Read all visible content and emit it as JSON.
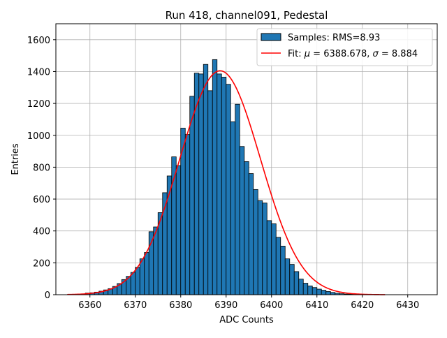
{
  "chart_data": {
    "type": "bar",
    "title": "Run 418, channel091, Pedestal",
    "xlabel": "ADC Counts",
    "ylabel": "Entries",
    "xlim": [
      6352.5,
      6436.5
    ],
    "ylim": [
      0,
      1700
    ],
    "xticks": [
      6360,
      6370,
      6380,
      6390,
      6400,
      6410,
      6420,
      6430
    ],
    "yticks": [
      0,
      200,
      400,
      600,
      800,
      1000,
      1200,
      1400,
      1600
    ],
    "grid": true,
    "legend_position": "top-right",
    "colors": {
      "bars": "#1f77b4",
      "bar_edge": "#000000",
      "fit": "#ff0000",
      "grid": "#b0b0b0"
    },
    "histogram": {
      "name": "Samples: RMS=8.93",
      "bin_start": 6357,
      "bin_width": 1,
      "counts": [
        2,
        5,
        10,
        12,
        16,
        22,
        30,
        38,
        52,
        70,
        95,
        115,
        140,
        172,
        225,
        265,
        395,
        425,
        515,
        640,
        745,
        865,
        810,
        1045,
        1005,
        1245,
        1390,
        1385,
        1445,
        1280,
        1475,
        1385,
        1365,
        1320,
        1085,
        1195,
        930,
        835,
        760,
        660,
        590,
        575,
        465,
        445,
        360,
        305,
        225,
        190,
        145,
        98,
        72,
        55,
        45,
        35,
        28,
        20,
        14,
        9,
        6,
        4,
        3,
        2
      ]
    },
    "fit": {
      "label_prefix": "Fit: ",
      "mu_symbol": "μ",
      "mu_value": " = 6388.678, ",
      "sigma_symbol": "σ",
      "sigma_value": " = 8.884",
      "mu": 6388.678,
      "sigma": 8.884,
      "amplitude": 1405,
      "x_range": [
        6355,
        6425
      ]
    }
  }
}
